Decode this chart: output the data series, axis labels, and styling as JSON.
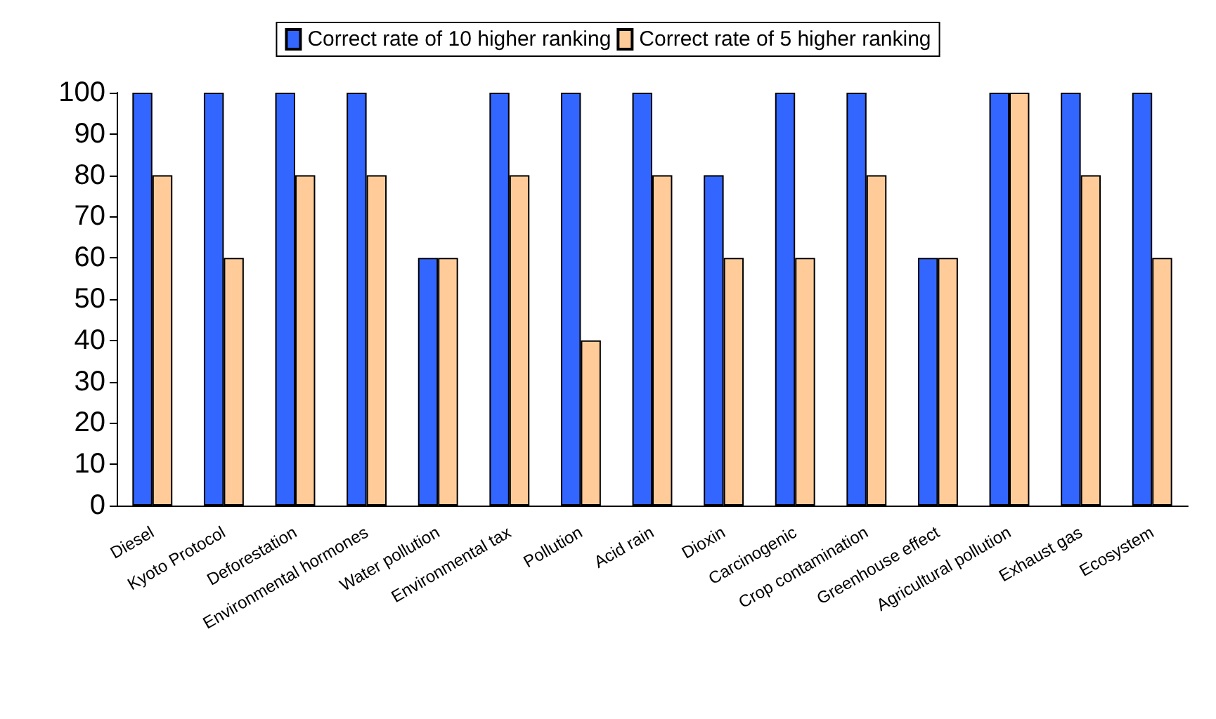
{
  "chart_data": {
    "type": "bar",
    "categories": [
      "Diesel",
      "Kyoto Protocol",
      "Deforestation",
      "Environmental hormones",
      "Water pollution",
      "Environmental tax",
      "Pollution",
      "Acid rain",
      "Dioxin",
      "Carcinogenic",
      "Crop contamination",
      "Greenhouse effect",
      "Agricultural pollution",
      "Exhaust gas",
      "Ecosystem"
    ],
    "series": [
      {
        "name": "Correct rate of 10 higher ranking",
        "color": "#3366ff",
        "values": [
          100,
          100,
          100,
          100,
          60,
          100,
          100,
          100,
          80,
          100,
          100,
          60,
          100,
          100,
          100
        ]
      },
      {
        "name": "Correct rate of 5 higher ranking",
        "color": "#ffcc99",
        "values": [
          80,
          60,
          80,
          80,
          60,
          80,
          40,
          80,
          60,
          60,
          80,
          60,
          100,
          80,
          60
        ]
      }
    ],
    "ylim": [
      0,
      100
    ],
    "yticks": [
      0,
      10,
      20,
      30,
      40,
      50,
      60,
      70,
      80,
      90,
      100
    ],
    "grid": false,
    "legend": "top"
  }
}
